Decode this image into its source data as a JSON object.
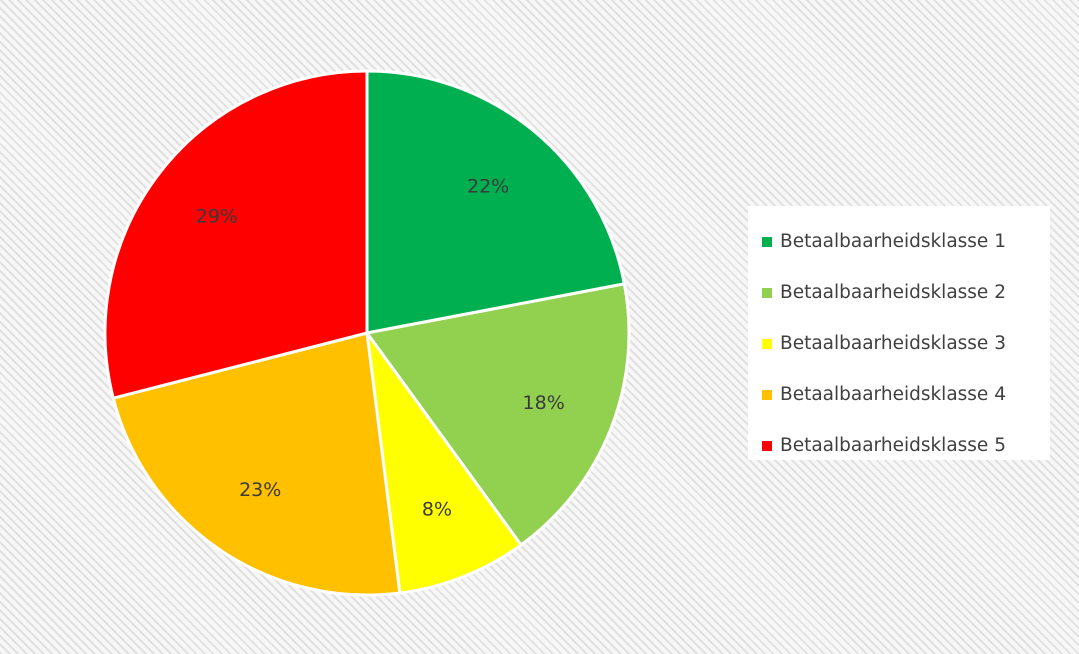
{
  "chart_data": {
    "type": "pie",
    "categories": [
      "Betaalbaarheidsklasse 1",
      "Betaalbaarheidsklasse 2",
      "Betaalbaarheidsklasse 3",
      "Betaalbaarheidsklasse 4",
      "Betaalbaarheidsklasse 5"
    ],
    "values": [
      22,
      18,
      8,
      23,
      29
    ],
    "labels": [
      "22%",
      "18%",
      "8%",
      "23%",
      "29%"
    ],
    "unit": "%",
    "colors": [
      "#00b050",
      "#92d050",
      "#ffff00",
      "#ffc000",
      "#ff0000"
    ],
    "start_angle": "12 o'clock",
    "direction": "clockwise",
    "legend_position": "right",
    "title": ""
  }
}
